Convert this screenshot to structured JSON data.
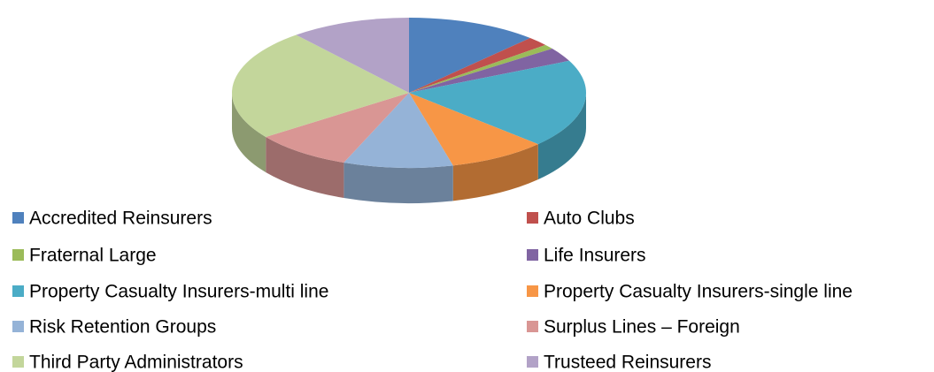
{
  "chart_data": {
    "type": "pie",
    "categories": [
      "Accredited Reinsurers",
      "Auto Clubs",
      "Fraternal Large",
      "Life Insurers",
      "Property Casualty Insurers-multi line",
      "Property Casualty Insurers-single line",
      "Risk Retention Groups",
      "Surplus Lines – Foreign",
      "Third Party Administrators",
      "Trusteed Reinsurers"
    ],
    "values": [
      12,
      2,
      1,
      3,
      19,
      9,
      10,
      9,
      24,
      11
    ],
    "colors": [
      "#4f81bd",
      "#c0504d",
      "#9bbb59",
      "#8064a2",
      "#4bacc6",
      "#f79646",
      "#95b3d7",
      "#d99694",
      "#c3d69b",
      "#b2a2c7"
    ],
    "legend": "bottom"
  }
}
